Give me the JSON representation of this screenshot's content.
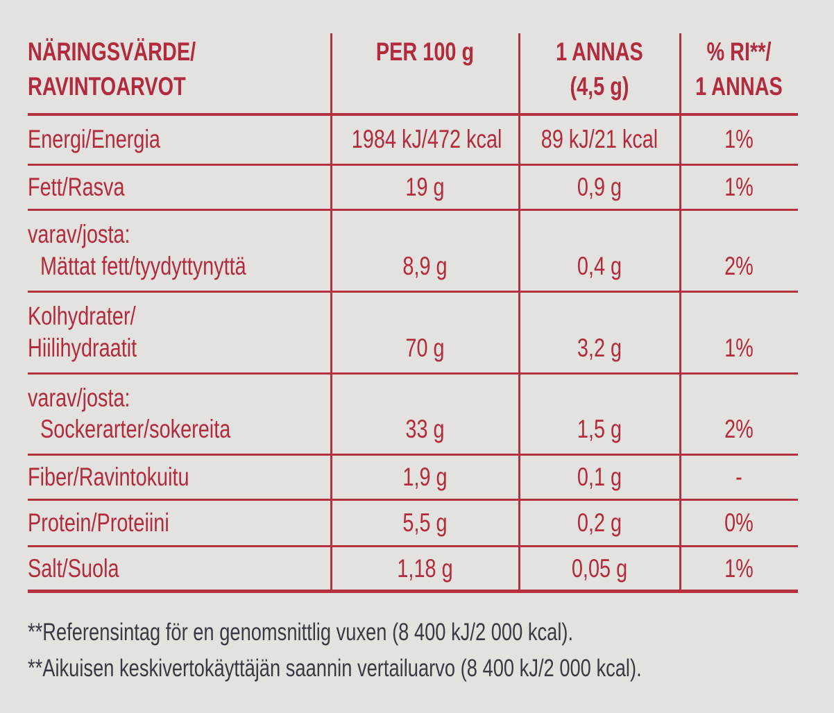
{
  "table": {
    "header": [
      [
        "NÄRINGSVÄRDE/",
        "RAVINTOARVOT"
      ],
      [
        "PER 100 g"
      ],
      [
        "1 ANNAS",
        "(4,5 g)"
      ],
      [
        "% RI**/",
        "1 ANNAS"
      ]
    ],
    "rows": [
      [
        [
          "Energi/Energia"
        ],
        "1984 kJ/472 kcal",
        "89 kJ/21 kcal",
        "1%"
      ],
      [
        [
          "Fett/Rasva"
        ],
        "19 g",
        "0,9 g",
        "1%"
      ],
      [
        [
          "varav/josta:",
          "Mättat fett/tyydyttynyttä"
        ],
        "8,9 g",
        "0,4 g",
        "2%"
      ],
      [
        [
          "Kolhydrater/",
          "Hiilihydraatit"
        ],
        "70 g",
        "3,2 g",
        "1%"
      ],
      [
        [
          "varav/josta:",
          "Sockerarter/sokereita"
        ],
        "33 g",
        "1,5 g",
        "2%"
      ],
      [
        [
          "Fiber/Ravintokuitu"
        ],
        "1,9 g",
        "0,1 g",
        "-"
      ],
      [
        [
          "Protein/Proteiini"
        ],
        "5,5 g",
        "0,2 g",
        "0%"
      ],
      [
        [
          "Salt/Suola"
        ],
        "1,18 g",
        "0,05 g",
        "1%"
      ]
    ]
  },
  "footnotes": [
    "**Referensintag för en genomsnittlig vuxen (8 400 kJ/2 000 kcal).",
    "**Aikuisen keskivertokäyttäjän saannin vertailuarvo (8 400 kJ/2 000 kcal)."
  ]
}
